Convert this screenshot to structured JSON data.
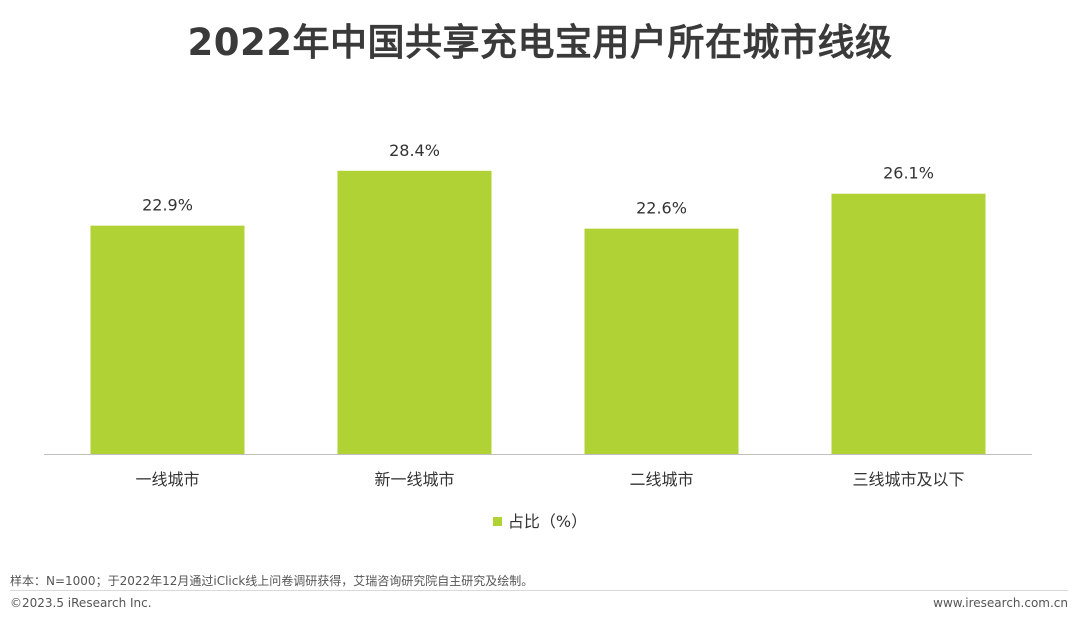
{
  "title": "2022年中国共享充电宝用户所在城市线级",
  "chart_data": {
    "type": "bar",
    "categories": [
      "一线城市",
      "新一线城市",
      "二线城市",
      "三线城市及以下"
    ],
    "series": [
      {
        "name": "占比（%）",
        "values": [
          22.9,
          28.4,
          22.6,
          26.1
        ]
      }
    ],
    "data_labels": [
      "22.9%",
      "28.4%",
      "22.6%",
      "26.1%"
    ],
    "ylim": [
      0,
      36
    ],
    "grid": false,
    "legend_position": "bottom",
    "bar_color": "#b0d235"
  },
  "legend": {
    "label": "占比（%）"
  },
  "footer": {
    "source": "样本：N=1000；于2022年12月通过iClick线上问卷调研获得，艾瑞咨询研究院自主研究及绘制。",
    "copyright": "©2023.5 iResearch Inc.",
    "website": "www.iresearch.com.cn"
  }
}
